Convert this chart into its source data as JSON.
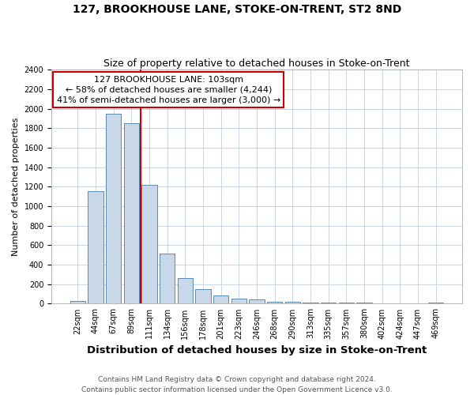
{
  "title": "127, BROOKHOUSE LANE, STOKE-ON-TRENT, ST2 8ND",
  "subtitle": "Size of property relative to detached houses in Stoke-on-Trent",
  "xlabel": "Distribution of detached houses by size in Stoke-on-Trent",
  "ylabel": "Number of detached properties",
  "bar_labels": [
    "22sqm",
    "44sqm",
    "67sqm",
    "89sqm",
    "111sqm",
    "134sqm",
    "156sqm",
    "178sqm",
    "201sqm",
    "223sqm",
    "246sqm",
    "268sqm",
    "290sqm",
    "313sqm",
    "335sqm",
    "357sqm",
    "380sqm",
    "402sqm",
    "424sqm",
    "447sqm",
    "469sqm"
  ],
  "bar_heights": [
    25,
    1150,
    1950,
    1850,
    1220,
    510,
    265,
    150,
    85,
    50,
    40,
    20,
    20,
    15,
    10,
    10,
    10,
    0,
    0,
    0,
    15
  ],
  "bar_color": "#c8d8e8",
  "bar_edgecolor": "#5a8ab0",
  "vline_color": "#cc0000",
  "annotation_text": "127 BROOKHOUSE LANE: 103sqm\n← 58% of detached houses are smaller (4,244)\n41% of semi-detached houses are larger (3,000) →",
  "annotation_box_color": "#ffffff",
  "annotation_box_edgecolor": "#cc0000",
  "ylim": [
    0,
    2400
  ],
  "yticks": [
    0,
    200,
    400,
    600,
    800,
    1000,
    1200,
    1400,
    1600,
    1800,
    2000,
    2200,
    2400
  ],
  "footer_line1": "Contains HM Land Registry data © Crown copyright and database right 2024.",
  "footer_line2": "Contains public sector information licensed under the Open Government Licence v3.0.",
  "background_color": "#ffffff",
  "grid_color": "#c0d0e0",
  "title_fontsize": 10,
  "subtitle_fontsize": 9,
  "xlabel_fontsize": 9.5,
  "ylabel_fontsize": 8,
  "tick_fontsize": 7,
  "annotation_fontsize": 8,
  "footer_fontsize": 6.5
}
